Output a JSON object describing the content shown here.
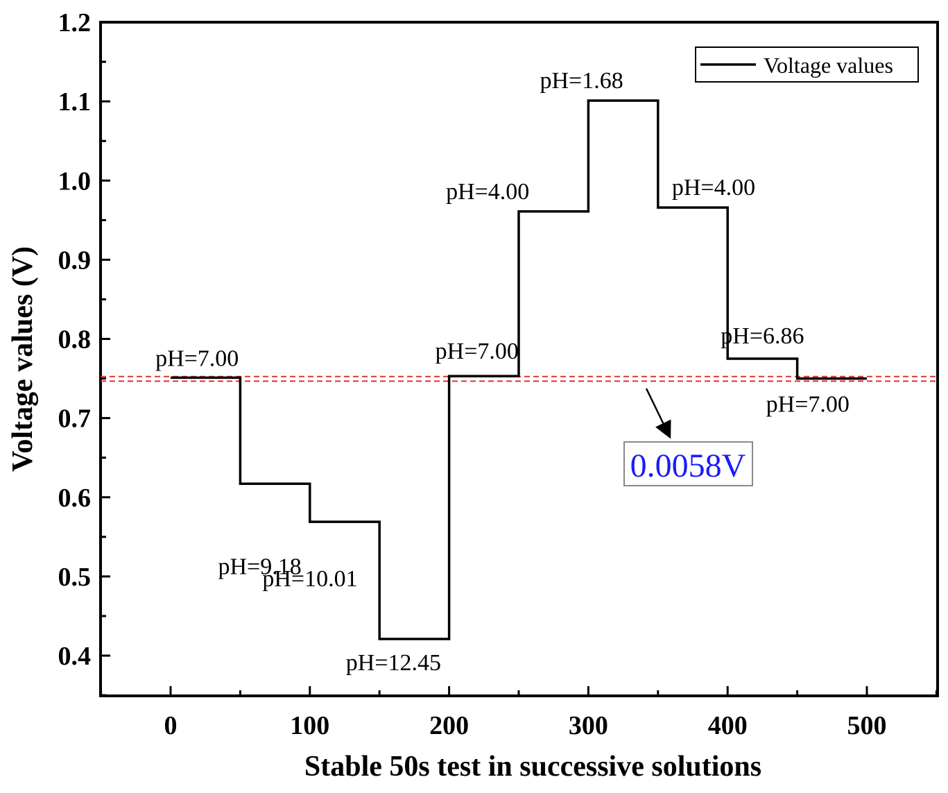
{
  "chart_data": {
    "type": "line",
    "title": "",
    "xlabel": "Stable 50s test in successive solutions",
    "ylabel": "Voltage values (V)",
    "xlim": [
      -50,
      550
    ],
    "ylim": [
      0.35,
      1.2
    ],
    "xticks": [
      0,
      100,
      200,
      300,
      400,
      500
    ],
    "xtick_labels": [
      "0",
      "100",
      "200",
      "300",
      "400",
      "500"
    ],
    "yticks": [
      0.4,
      0.5,
      0.6,
      0.7,
      0.8,
      0.9,
      1.0,
      1.1,
      1.2
    ],
    "ytick_labels": [
      "0.4",
      "0.5",
      "0.6",
      "0.7",
      "0.8",
      "0.9",
      "1.0",
      "1.1",
      "1.2"
    ],
    "grid": false,
    "legend": {
      "position": "top-right",
      "entries": [
        "Voltage values"
      ]
    },
    "series": [
      {
        "name": "Voltage values",
        "color": "#000000",
        "segments": [
          {
            "x_start": 0,
            "x_end": 50,
            "y": 0.751,
            "label": "pH=7.00"
          },
          {
            "x_start": 50,
            "x_end": 100,
            "y": 0.617,
            "label": "pH=9.18"
          },
          {
            "x_start": 100,
            "x_end": 150,
            "y": 0.569,
            "label": "pH=10.01"
          },
          {
            "x_start": 150,
            "x_end": 200,
            "y": 0.421,
            "label": "pH=12.45"
          },
          {
            "x_start": 200,
            "x_end": 250,
            "y": 0.753,
            "label": "pH=7.00"
          },
          {
            "x_start": 250,
            "x_end": 300,
            "y": 0.961,
            "label": "pH=4.00"
          },
          {
            "x_start": 300,
            "x_end": 350,
            "y": 1.101,
            "label": "pH=1.68"
          },
          {
            "x_start": 350,
            "x_end": 400,
            "y": 0.966,
            "label": "pH=4.00"
          },
          {
            "x_start": 400,
            "x_end": 450,
            "y": 0.775,
            "label": "pH=6.86"
          },
          {
            "x_start": 450,
            "x_end": 500,
            "y": 0.75,
            "label": "pH=7.00"
          }
        ]
      }
    ],
    "reference_lines": [
      {
        "y": 0.7525,
        "color": "#e03030",
        "style": "dashed"
      },
      {
        "y": 0.7467,
        "color": "#e03030",
        "style": "dashed"
      }
    ],
    "annotations": [
      {
        "text": "0.0058V",
        "color": "#1a1aff"
      }
    ]
  }
}
